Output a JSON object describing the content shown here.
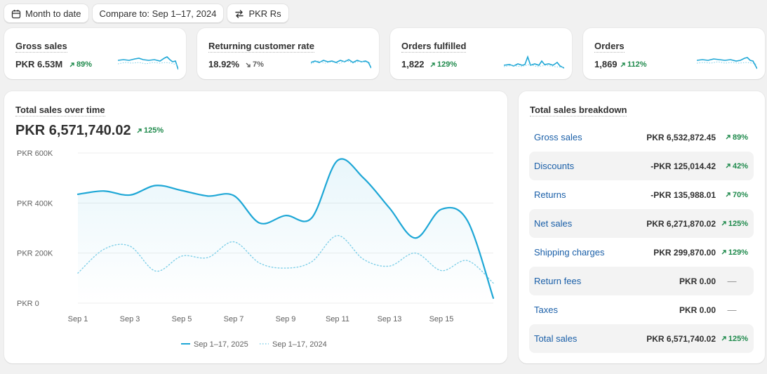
{
  "toolbar": {
    "date_label": "Month to date",
    "compare_label": "Compare to: Sep 1–17, 2024",
    "currency_label": "PKR Rs"
  },
  "metrics": [
    {
      "title": "Gross sales",
      "value": "PKR 6.53M",
      "change": "89%",
      "direction": "up"
    },
    {
      "title": "Returning customer rate",
      "value": "18.92%",
      "change": "7%",
      "direction": "down"
    },
    {
      "title": "Orders fulfilled",
      "value": "1,822",
      "change": "129%",
      "direction": "up"
    },
    {
      "title": "Orders",
      "value": "1,869",
      "change": "112%",
      "direction": "up"
    }
  ],
  "sales_chart": {
    "title": "Total sales over time",
    "total": "PKR 6,571,740.02",
    "change": "125%"
  },
  "chart_data": {
    "type": "line",
    "categories": [
      "Sep 1",
      "Sep 2",
      "Sep 3",
      "Sep 4",
      "Sep 5",
      "Sep 6",
      "Sep 7",
      "Sep 8",
      "Sep 9",
      "Sep 10",
      "Sep 11",
      "Sep 12",
      "Sep 13",
      "Sep 14",
      "Sep 15",
      "Sep 16",
      "Sep 17"
    ],
    "x_tick_labels": [
      "Sep 1",
      "Sep 3",
      "Sep 5",
      "Sep 7",
      "Sep 9",
      "Sep 11",
      "Sep 13",
      "Sep 15"
    ],
    "y_tick_labels": [
      "PKR 600K",
      "PKR 400K",
      "PKR 200K",
      "PKR 0"
    ],
    "ylim": [
      0,
      600000
    ],
    "grid": true,
    "legend_position": "bottom-center",
    "series": [
      {
        "name": "Sep 1–17, 2025",
        "color": "#1ea7d6",
        "style": "solid",
        "values": [
          435000,
          448000,
          432000,
          470000,
          450000,
          428000,
          430000,
          320000,
          350000,
          340000,
          570000,
          500000,
          380000,
          260000,
          375000,
          330000,
          20000
        ]
      },
      {
        "name": "Sep 1–17, 2024",
        "color": "#7fcfe8",
        "style": "dotted",
        "values": [
          120000,
          215000,
          228000,
          128000,
          188000,
          182000,
          245000,
          160000,
          140000,
          165000,
          270000,
          175000,
          148000,
          200000,
          130000,
          170000,
          80000
        ]
      }
    ]
  },
  "breakdown": {
    "title": "Total sales breakdown",
    "rows": [
      {
        "label": "Gross sales",
        "value": "PKR 6,532,872.45",
        "change": "89%",
        "direction": "up"
      },
      {
        "label": "Discounts",
        "value": "-PKR 125,014.42",
        "change": "42%",
        "direction": "up"
      },
      {
        "label": "Returns",
        "value": "-PKR 135,988.01",
        "change": "70%",
        "direction": "up"
      },
      {
        "label": "Net sales",
        "value": "PKR 6,271,870.02",
        "change": "125%",
        "direction": "up"
      },
      {
        "label": "Shipping charges",
        "value": "PKR 299,870.00",
        "change": "129%",
        "direction": "up"
      },
      {
        "label": "Return fees",
        "value": "PKR 0.00",
        "change": "—",
        "direction": "none"
      },
      {
        "label": "Taxes",
        "value": "PKR 0.00",
        "change": "—",
        "direction": "none"
      },
      {
        "label": "Total sales",
        "value": "PKR 6,571,740.02",
        "change": "125%",
        "direction": "up"
      }
    ]
  },
  "colors": {
    "accent": "#1ea7d6",
    "positive": "#1f8a4c",
    "link": "#1a5fa8"
  }
}
